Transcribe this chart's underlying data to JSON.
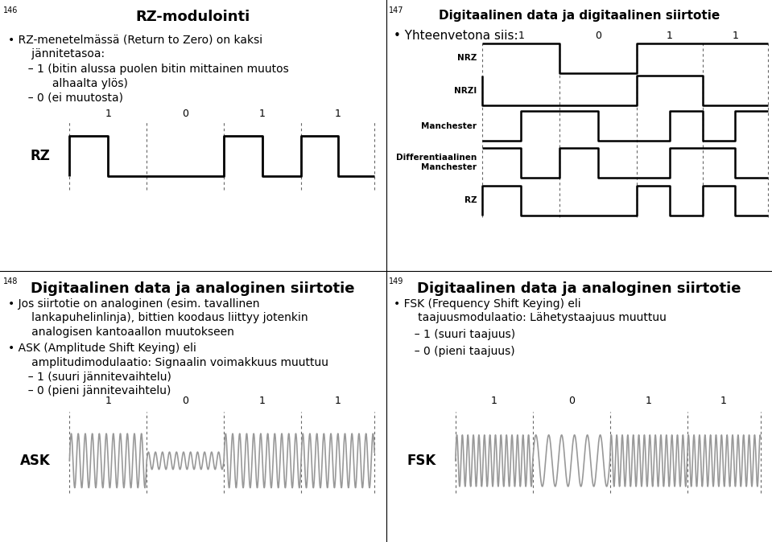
{
  "bg_color": "#ffffff",
  "tl": {
    "number": "146",
    "title": "RZ-modulointi",
    "bullet1": "• RZ-menetelmässä (Return to Zero) on kaksi",
    "bullet1b": "   jännitetasoa:",
    "bullet2": "  – 1 (bitin alussa puolen bitin mittainen muutos",
    "bullet2b": "     alhaalta ylös)",
    "bullet3": "  – 0 (ei muutosta)",
    "bits": [
      "1",
      "0",
      "1",
      "1"
    ],
    "label": "RZ"
  },
  "tr": {
    "number": "147",
    "title": "Digitaalinen data ja digitaalinen siirtotie",
    "bullet1": "• Yhteenvetona siis:",
    "bits": [
      "1",
      "0",
      "1",
      "1"
    ],
    "signals": [
      "NRZ",
      "NRZI",
      "Manchester",
      "Differentiaalinen\nManchester",
      "RZ"
    ]
  },
  "bl": {
    "number": "148",
    "title": "Digitaalinen data ja analoginen siirtotie",
    "bullet1": "• Jos siirtotie on analoginen (esim. tavallinen",
    "bullet1b": "   lankapuhelinlinja), bittien koodaus liittyy jotenkin",
    "bullet1c": "   analogisen kantoaallon muutokseen",
    "bullet2": "• ASK (Amplitude Shift Keying) eli",
    "bullet2b": "   amplitudimodulaatio: Signaalin voimakkuus muuttuu",
    "bullet3": "  – 1 (suuri jännitevaihtelu)",
    "bullet4": "  – 0 (pieni jännitevaihtelu)",
    "bits": [
      "1",
      "0",
      "1",
      "1"
    ],
    "label": "ASK",
    "freq_high": 5.5,
    "freq_low": 5.5,
    "amp_high": 1.0,
    "amp_low": 0.32
  },
  "br": {
    "number": "149",
    "title": "Digitaalinen data ja analoginen siirtotie",
    "bullet1": "• FSK (Frequency Shift Keying) eli",
    "bullet1b": "   taajuusmodulaatio: Lähetystaajuus muuttuu",
    "bullet2": "  – 1 (suuri taajuus)",
    "bullet3": "  – 0 (pieni taajuus)",
    "bits": [
      "1",
      "0",
      "1",
      "1"
    ],
    "label": "FSK",
    "freq_high": 7.0,
    "freq_low": 3.0,
    "amp": 0.95
  },
  "divider_color": "#000000",
  "dotted_color": "#666666",
  "signal_color": "#000000",
  "analog_color": "#999999",
  "title_fs": 13,
  "body_fs": 10,
  "number_fs": 7,
  "label_fs": 12
}
